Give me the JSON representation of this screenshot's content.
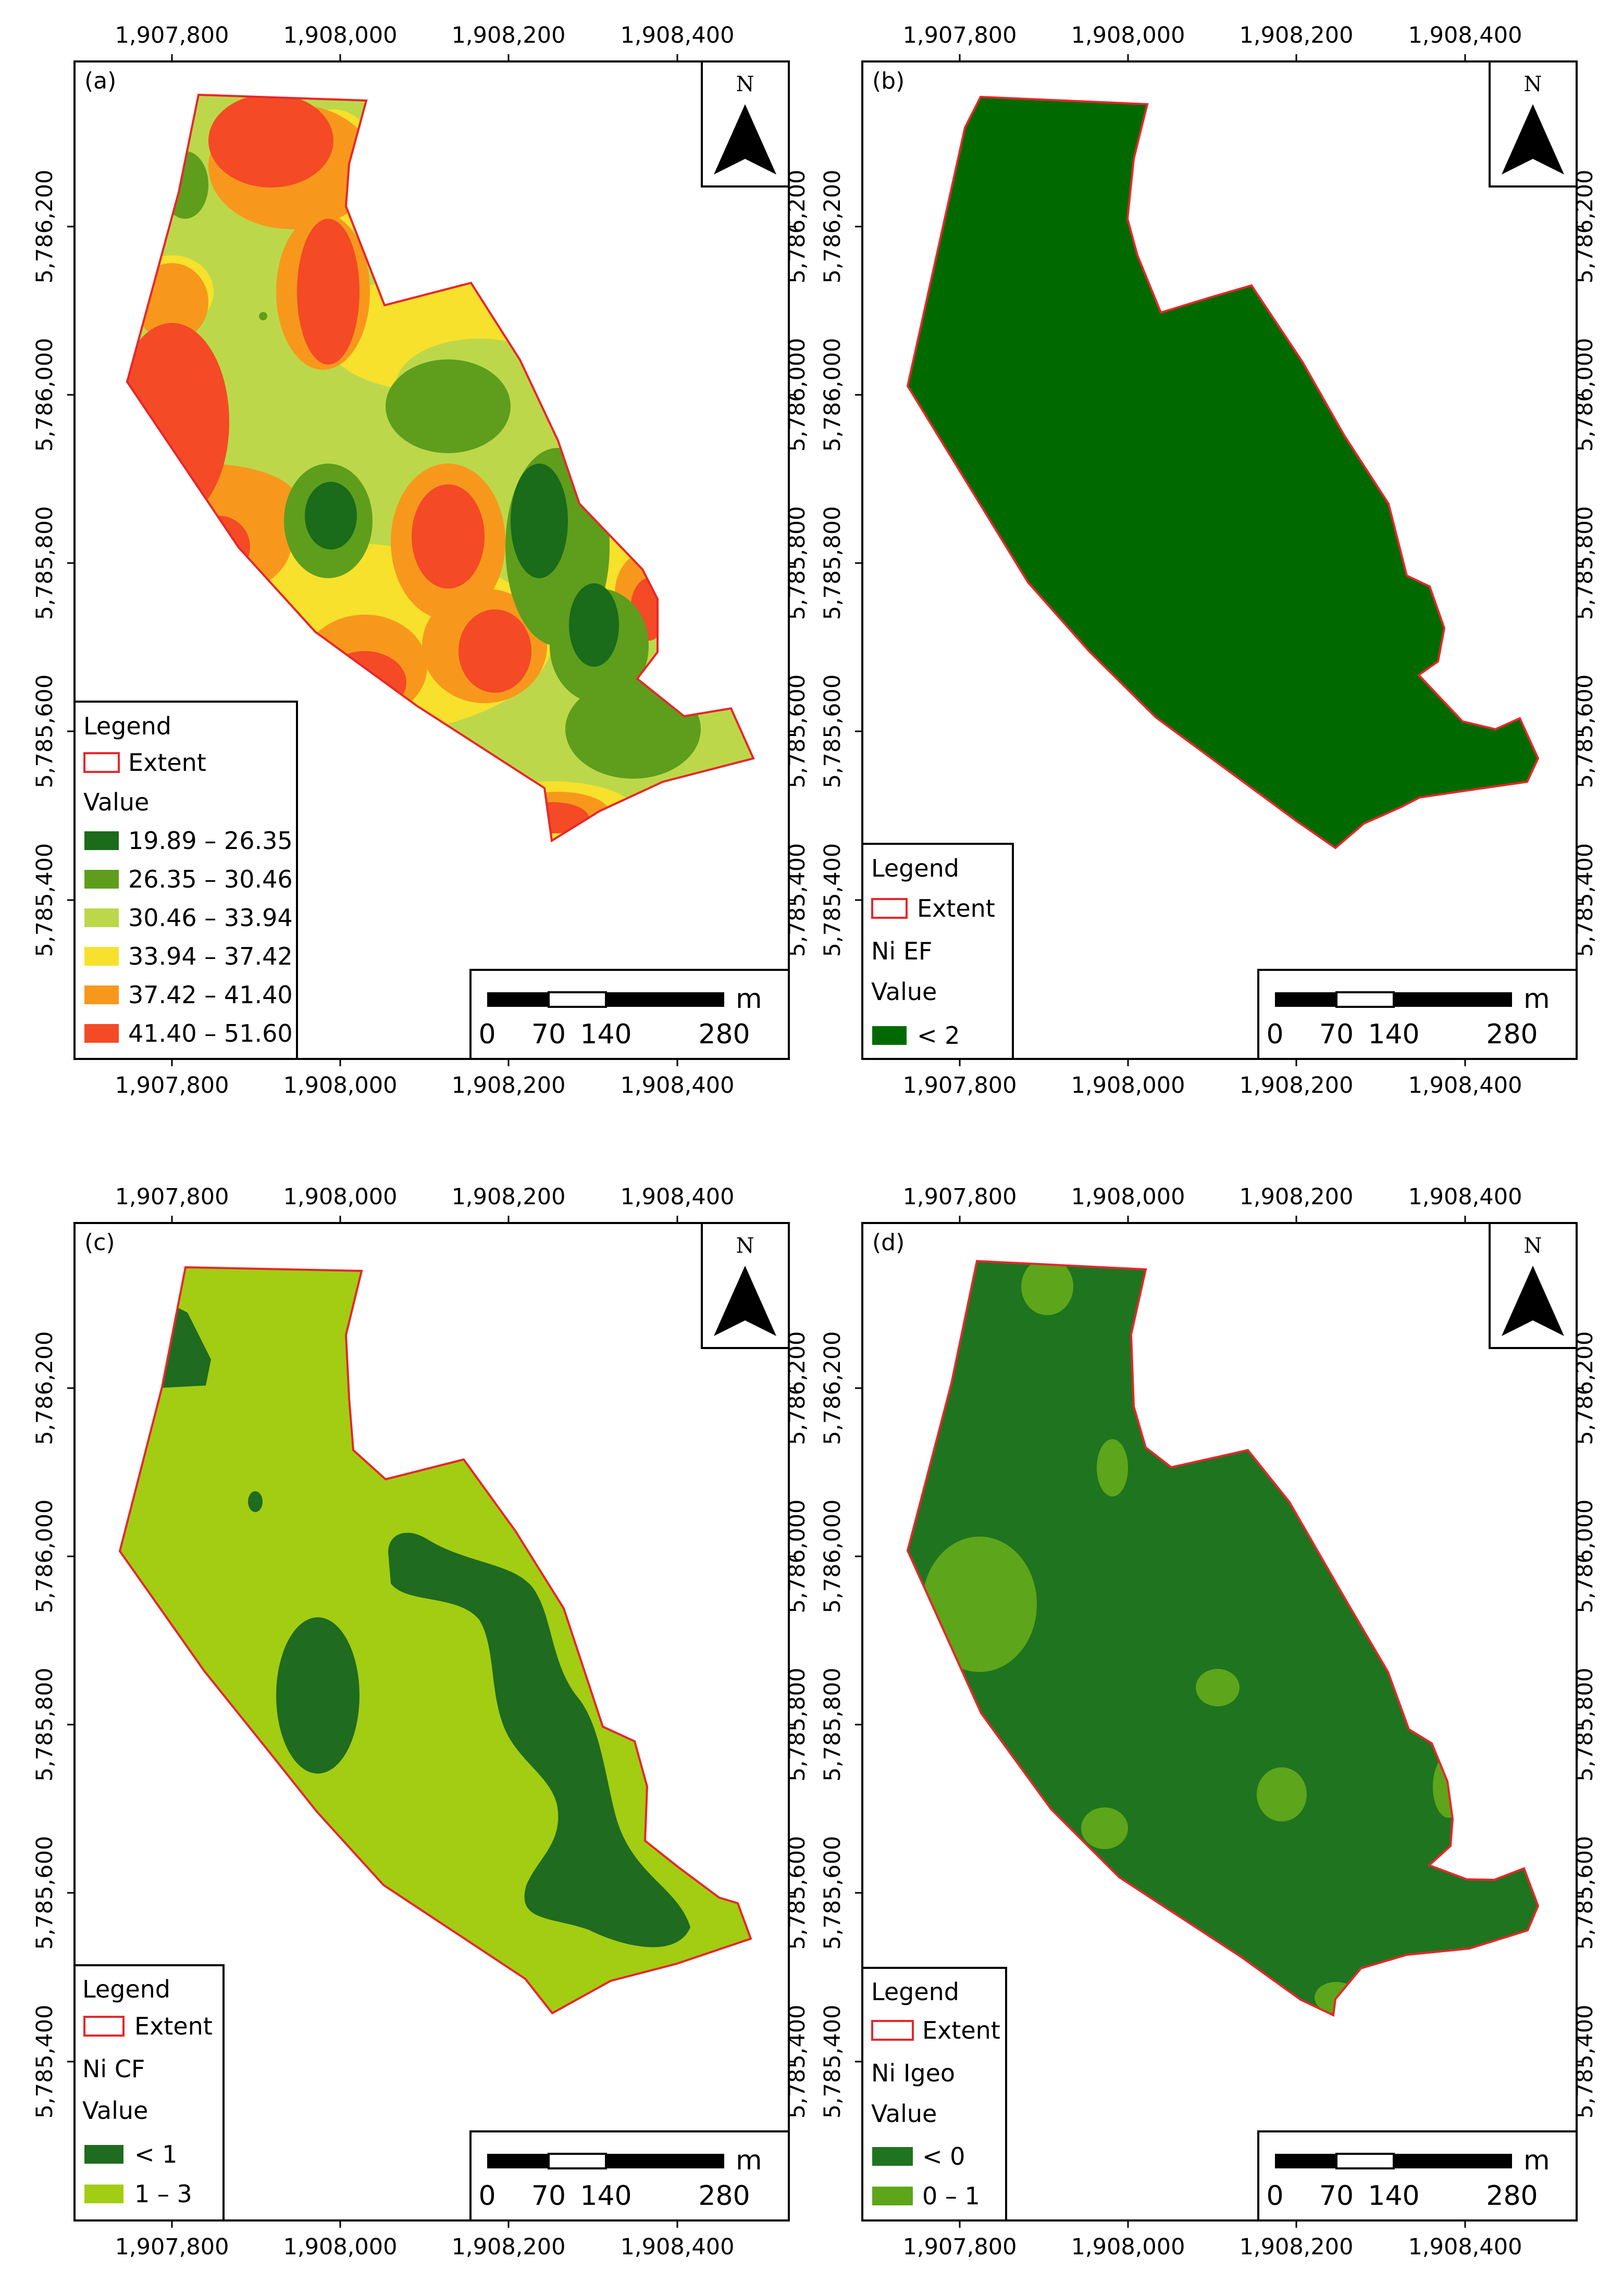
{
  "map_panels": [
    {
      "label": "(a)",
      "legend": {
        "title": "Legend",
        "extent_label": "Extent",
        "layer_name": "",
        "value_label": "Value",
        "classes": [
          {
            "label": "19.89 – 26.35",
            "color": "#1a6b1a"
          },
          {
            "label": "26.35 – 30.46",
            "color": "#5e9e1c"
          },
          {
            "label": "30.46 – 33.94",
            "color": "#bcd84a"
          },
          {
            "label": "33.94 – 37.42",
            "color": "#f7e12c"
          },
          {
            "label": "37.42 – 41.40",
            "color": "#f7981d"
          },
          {
            "label": "41.40 – 51.60",
            "color": "#f44a25"
          }
        ]
      }
    },
    {
      "label": "(b)",
      "legend": {
        "title": "Legend",
        "extent_label": "Extent",
        "layer_name": "Ni EF",
        "value_label": "Value",
        "classes": [
          {
            "label": "< 2",
            "color": "#006a00"
          }
        ]
      }
    },
    {
      "label": "(c)",
      "legend": {
        "title": "Legend",
        "extent_label": "Extent",
        "layer_name": "Ni CF",
        "value_label": "Value",
        "classes": [
          {
            "label": "< 1",
            "color": "#1f6b1f"
          },
          {
            "label": "1 – 3",
            "color": "#a2cd13"
          }
        ]
      }
    },
    {
      "label": "(d)",
      "legend": {
        "title": "Legend",
        "extent_label": "Extent",
        "layer_name": "Ni Igeo",
        "value_label": "Value",
        "classes": [
          {
            "label": "< 0",
            "color": "#1f741f"
          },
          {
            "label": "0 – 1",
            "color": "#5da51a"
          }
        ]
      }
    }
  ],
  "axes": {
    "x_ticks": [
      "1,907,800",
      "1,908,000",
      "1,908,200",
      "1,908,400"
    ],
    "y_ticks": [
      "5,785,400",
      "5,785,600",
      "5,785,800",
      "5,786,000",
      "5,786,200"
    ]
  },
  "north_arrow_label": "N",
  "scale_bar": {
    "unit": "m",
    "labels": [
      "0",
      "70",
      "140",
      "280"
    ]
  },
  "colors": {
    "extent_outline": "#e8262a",
    "frame": "#000000"
  }
}
